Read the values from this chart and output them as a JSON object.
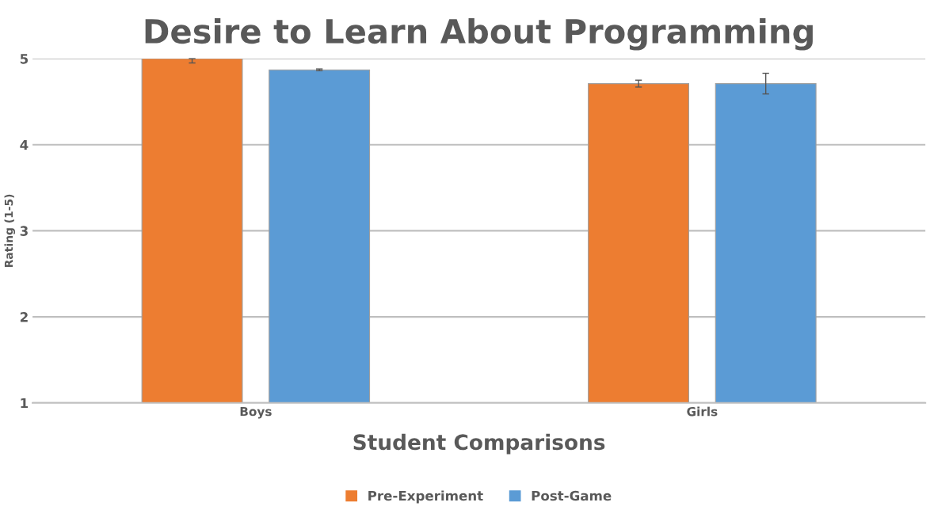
{
  "chart_data": {
    "type": "bar",
    "title": "Desire to Learn About Programming",
    "xlabel": "Student Comparisons",
    "ylabel": "Rating (1-5)",
    "categories": [
      "Boys",
      "Girls"
    ],
    "series": [
      {
        "name": "Pre-Experiment",
        "color": "#ed7d31",
        "values": [
          5.0,
          4.71
        ],
        "errors": [
          [
            4.95,
            5.0
          ],
          0.04
        ]
      },
      {
        "name": "Post-Game",
        "color": "#5b9bd5",
        "values": [
          4.87,
          4.71
        ],
        "errors": [
          0.01,
          0.12
        ]
      }
    ],
    "ylim": [
      1,
      5
    ],
    "yticks": [
      1,
      2,
      3,
      4,
      5
    ],
    "grid": "y",
    "legend": "bottom"
  }
}
